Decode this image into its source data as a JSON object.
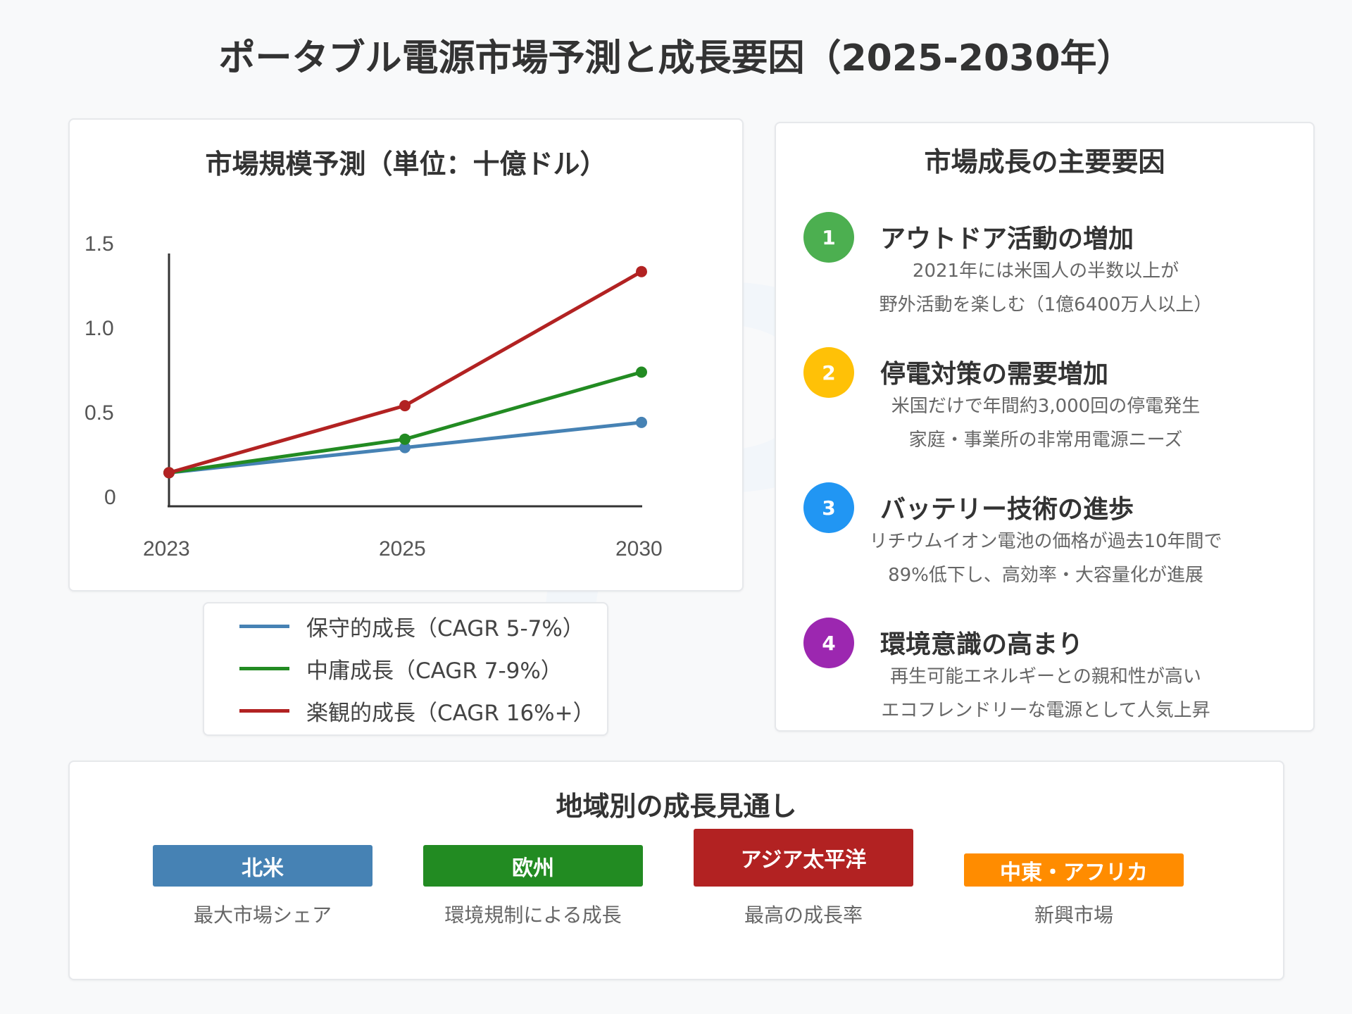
{
  "title": "ポータブル電源市場予測と成長要因（2025-2030年）",
  "watermark": {
    "brand": "POWERBANKS",
    "tagline": "Specialized site for portable power station"
  },
  "chart_data": {
    "type": "line",
    "title": "市場規模予測（単位：十億ドル）",
    "categories": [
      "2023",
      "2025",
      "2030"
    ],
    "ylim": [
      0,
      1.5
    ],
    "yticks": [
      "0",
      "0.5",
      "1.0",
      "1.5"
    ],
    "grid": false,
    "legend_placement": "bottom",
    "series": [
      {
        "name": "保守的成長（CAGR 5-7%）",
        "color": "#4682b4",
        "values": [
          0.15,
          0.3,
          0.45
        ]
      },
      {
        "name": "中庸成長（CAGR 7-9%）",
        "color": "#228b22",
        "values": [
          0.15,
          0.35,
          0.75
        ]
      },
      {
        "name": "楽観的成長（CAGR 16%+）",
        "color": "#b22222",
        "values": [
          0.15,
          0.55,
          1.35
        ]
      }
    ]
  },
  "factors": {
    "title": "市場成長の主要要因",
    "items": [
      {
        "num": "1",
        "color": "#4caf50",
        "title": "アウトドア活動の増加",
        "lines": [
          "2021年には米国人の半数以上が",
          "野外活動を楽しむ（1億6400万人以上）"
        ]
      },
      {
        "num": "2",
        "color": "#ffc107",
        "title": "停電対策の需要増加",
        "lines": [
          "米国だけで年間約3,000回の停電発生",
          "家庭・事業所の非常用電源ニーズ"
        ]
      },
      {
        "num": "3",
        "color": "#2196f3",
        "title": "バッテリー技術の進歩",
        "lines": [
          "リチウムイオン電池の価格が過去10年間で",
          "89%低下し、高効率・大容量化が進展"
        ]
      },
      {
        "num": "4",
        "color": "#9c27b0",
        "title": "環境意識の高まり",
        "lines": [
          "再生可能エネルギーとの親和性が高い",
          "エコフレンドリーな電源として人気上昇"
        ]
      }
    ]
  },
  "regions": {
    "title": "地域別の成長見通し",
    "items": [
      {
        "name": "北米",
        "color": "#4682b4",
        "caption": "最大市場シェア"
      },
      {
        "name": "欧州",
        "color": "#228b22",
        "caption": "環境規制による成長"
      },
      {
        "name": "アジア太平洋",
        "color": "#b22222",
        "caption": "最高の成長率"
      },
      {
        "name": "中東・アフリカ",
        "color": "#ff8c00",
        "caption": "新興市場"
      }
    ]
  }
}
